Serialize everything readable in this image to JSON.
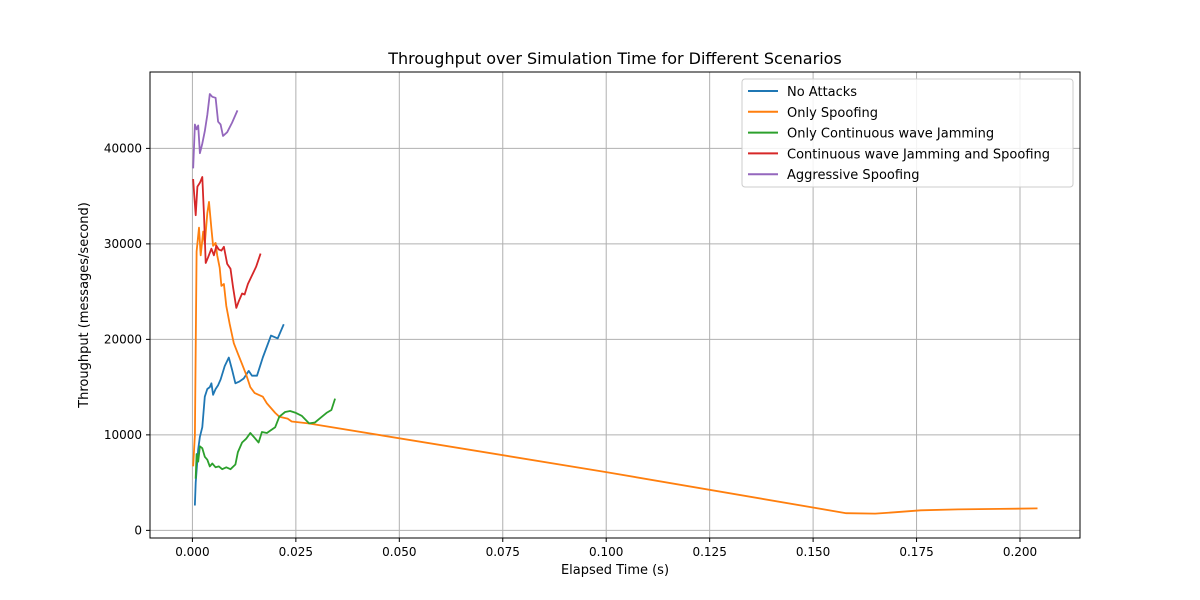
{
  "chart_data": {
    "type": "line",
    "title": "Throughput over Simulation Time for Different Scenarios",
    "xlabel": "Elapsed Time (s)",
    "ylabel": "Throughput (messages/second)",
    "xlim": [
      -0.01025,
      0.2145
    ],
    "ylim": [
      -800,
      48000
    ],
    "xticks": [
      0.0,
      0.025,
      0.05,
      0.075,
      0.1,
      0.125,
      0.15,
      0.175,
      0.2
    ],
    "xtick_labels": [
      "0.000",
      "0.025",
      "0.050",
      "0.075",
      "0.100",
      "0.125",
      "0.150",
      "0.175",
      "0.200"
    ],
    "yticks": [
      0,
      10000,
      20000,
      30000,
      40000
    ],
    "ytick_labels": [
      "0",
      "10000",
      "20000",
      "30000",
      "40000"
    ],
    "grid": true,
    "legend_position": "upper right",
    "series": [
      {
        "name": "No Attacks",
        "color": "#1f77b4",
        "points": [
          [
            0.0006,
            2700
          ],
          [
            0.0008,
            5000
          ],
          [
            0.0014,
            8500
          ],
          [
            0.0018,
            9800
          ],
          [
            0.0024,
            10800
          ],
          [
            0.003,
            14000
          ],
          [
            0.0036,
            14800
          ],
          [
            0.0042,
            15000
          ],
          [
            0.0046,
            15400
          ],
          [
            0.005,
            14200
          ],
          [
            0.0056,
            14800
          ],
          [
            0.0062,
            15200
          ],
          [
            0.0068,
            15800
          ],
          [
            0.0078,
            17200
          ],
          [
            0.0088,
            18100
          ],
          [
            0.0096,
            16800
          ],
          [
            0.0104,
            15400
          ],
          [
            0.0114,
            15600
          ],
          [
            0.0124,
            15900
          ],
          [
            0.0136,
            16700
          ],
          [
            0.0144,
            16200
          ],
          [
            0.0156,
            16200
          ],
          [
            0.017,
            18100
          ],
          [
            0.019,
            20400
          ],
          [
            0.0206,
            20100
          ],
          [
            0.022,
            21500
          ]
        ]
      },
      {
        "name": "Only Spoofing",
        "color": "#ff7f0e",
        "points": [
          [
            0.0002,
            6800
          ],
          [
            0.0006,
            10000
          ],
          [
            0.001,
            29200
          ],
          [
            0.0016,
            31700
          ],
          [
            0.002,
            28800
          ],
          [
            0.0026,
            31300
          ],
          [
            0.003,
            30000
          ],
          [
            0.0036,
            33200
          ],
          [
            0.004,
            34400
          ],
          [
            0.0046,
            31600
          ],
          [
            0.005,
            29800
          ],
          [
            0.0056,
            30100
          ],
          [
            0.006,
            28800
          ],
          [
            0.0066,
            27500
          ],
          [
            0.007,
            25600
          ],
          [
            0.0076,
            25800
          ],
          [
            0.0082,
            23500
          ],
          [
            0.009,
            21600
          ],
          [
            0.01,
            19600
          ],
          [
            0.011,
            18500
          ],
          [
            0.012,
            17400
          ],
          [
            0.013,
            16300
          ],
          [
            0.014,
            15000
          ],
          [
            0.015,
            14400
          ],
          [
            0.016,
            14200
          ],
          [
            0.017,
            14000
          ],
          [
            0.018,
            13300
          ],
          [
            0.02,
            12300
          ],
          [
            0.021,
            11900
          ],
          [
            0.023,
            11700
          ],
          [
            0.024,
            11400
          ],
          [
            0.028,
            11200
          ],
          [
            0.1,
            6100
          ],
          [
            0.158,
            1800
          ],
          [
            0.165,
            1750
          ],
          [
            0.17,
            1900
          ],
          [
            0.176,
            2100
          ],
          [
            0.185,
            2200
          ],
          [
            0.195,
            2250
          ],
          [
            0.204,
            2300
          ]
        ]
      },
      {
        "name": "Only Continuous wave Jamming",
        "color": "#2ca02c",
        "points": [
          [
            0.0008,
            5500
          ],
          [
            0.001,
            8000
          ],
          [
            0.0014,
            7200
          ],
          [
            0.0018,
            8800
          ],
          [
            0.0024,
            8600
          ],
          [
            0.003,
            7700
          ],
          [
            0.0036,
            7400
          ],
          [
            0.0042,
            6700
          ],
          [
            0.0048,
            7000
          ],
          [
            0.0056,
            6600
          ],
          [
            0.0064,
            6700
          ],
          [
            0.0072,
            6400
          ],
          [
            0.0082,
            6600
          ],
          [
            0.0092,
            6400
          ],
          [
            0.0104,
            6900
          ],
          [
            0.011,
            8200
          ],
          [
            0.012,
            9200
          ],
          [
            0.013,
            9600
          ],
          [
            0.014,
            10200
          ],
          [
            0.015,
            9700
          ],
          [
            0.016,
            9200
          ],
          [
            0.0168,
            10300
          ],
          [
            0.018,
            10200
          ],
          [
            0.019,
            10500
          ],
          [
            0.02,
            10800
          ],
          [
            0.021,
            11900
          ],
          [
            0.0224,
            12400
          ],
          [
            0.0236,
            12500
          ],
          [
            0.025,
            12300
          ],
          [
            0.0264,
            12000
          ],
          [
            0.0282,
            11200
          ],
          [
            0.0296,
            11300
          ],
          [
            0.031,
            11800
          ],
          [
            0.0324,
            12300
          ],
          [
            0.0336,
            12600
          ],
          [
            0.0344,
            13700
          ]
        ]
      },
      {
        "name": "Continuous wave Jamming and Spoofing",
        "color": "#d62728",
        "points": [
          [
            0.0002,
            36700
          ],
          [
            0.0004,
            35300
          ],
          [
            0.0008,
            33000
          ],
          [
            0.0012,
            36000
          ],
          [
            0.0018,
            36400
          ],
          [
            0.0024,
            37000
          ],
          [
            0.0028,
            33000
          ],
          [
            0.0032,
            28000
          ],
          [
            0.0038,
            28600
          ],
          [
            0.0046,
            29500
          ],
          [
            0.0052,
            28800
          ],
          [
            0.0058,
            29800
          ],
          [
            0.0064,
            29400
          ],
          [
            0.007,
            29300
          ],
          [
            0.0076,
            29700
          ],
          [
            0.0084,
            27900
          ],
          [
            0.0092,
            27400
          ],
          [
            0.0098,
            25500
          ],
          [
            0.0106,
            23300
          ],
          [
            0.0112,
            24000
          ],
          [
            0.012,
            24800
          ],
          [
            0.0126,
            24700
          ],
          [
            0.0134,
            25800
          ],
          [
            0.0144,
            26700
          ],
          [
            0.0154,
            27600
          ],
          [
            0.0164,
            28900
          ]
        ]
      },
      {
        "name": "Aggressive Spoofing",
        "color": "#9467bd",
        "points": [
          [
            0.0002,
            38000
          ],
          [
            0.0006,
            42500
          ],
          [
            0.001,
            42000
          ],
          [
            0.0014,
            42400
          ],
          [
            0.0018,
            39500
          ],
          [
            0.0024,
            40500
          ],
          [
            0.003,
            41800
          ],
          [
            0.0036,
            43500
          ],
          [
            0.0042,
            45700
          ],
          [
            0.0048,
            45400
          ],
          [
            0.0056,
            45300
          ],
          [
            0.0062,
            42800
          ],
          [
            0.0068,
            42500
          ],
          [
            0.0074,
            41300
          ],
          [
            0.0084,
            41700
          ],
          [
            0.0096,
            42700
          ],
          [
            0.0108,
            43900
          ]
        ]
      }
    ]
  }
}
